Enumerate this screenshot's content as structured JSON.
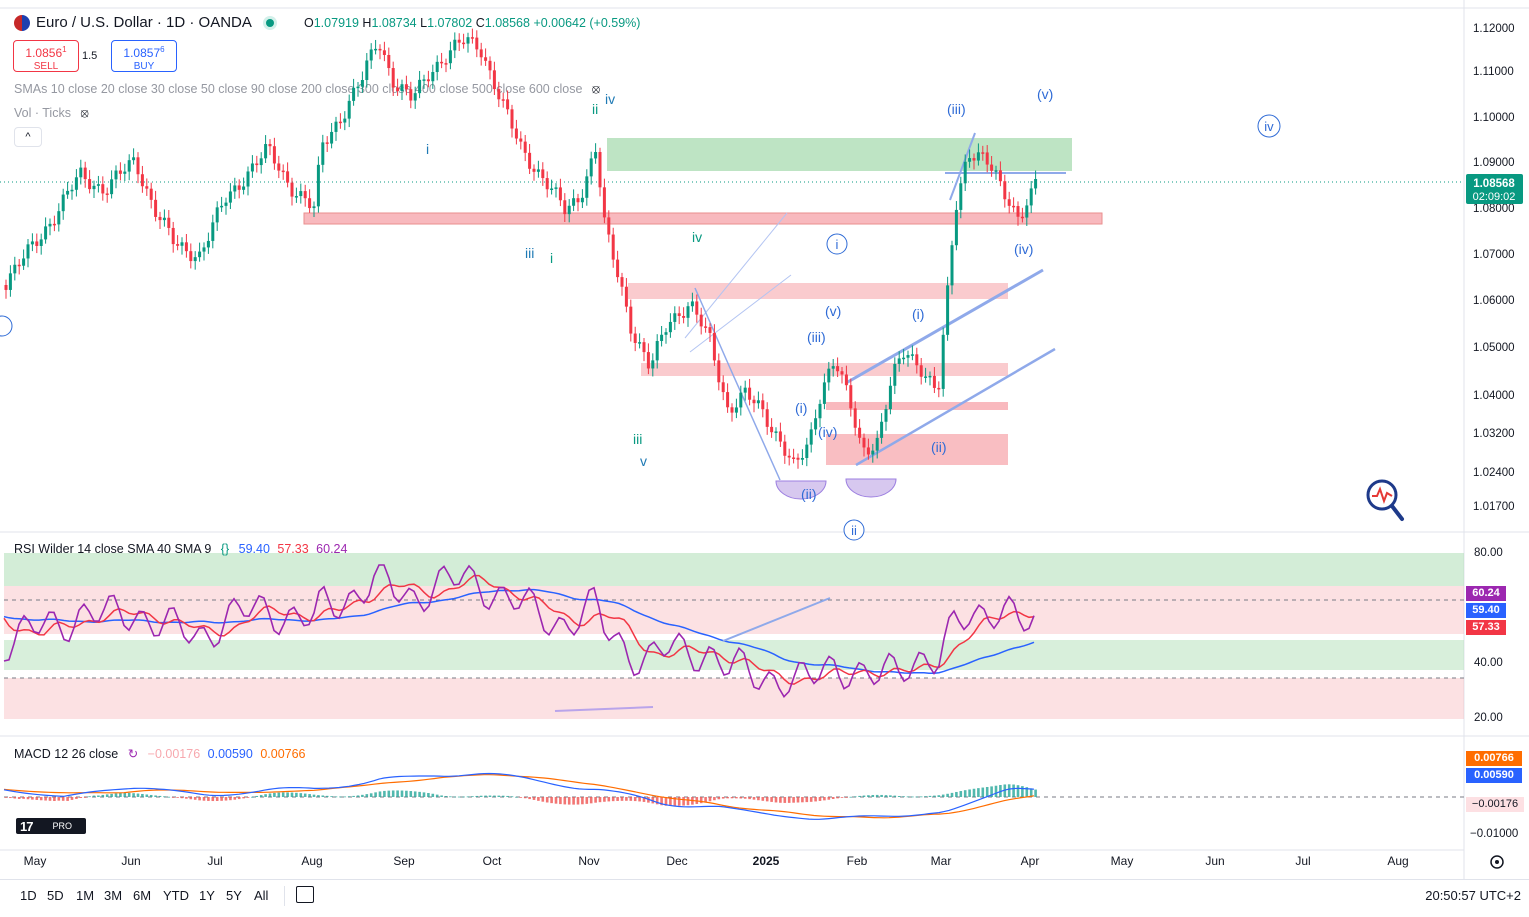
{
  "header": {
    "symbol_title": "Euro / U.S. Dollar · 1D · OANDA",
    "ohlc": {
      "o_key": "O",
      "o": "1.07919",
      "h_key": "H",
      "h": "1.08734",
      "l_key": "L",
      "l": "1.07802",
      "c_key": "C",
      "c": "1.08568",
      "change": "+0.00642 (+0.59%)"
    },
    "sell": {
      "price": "1.0856",
      "sup": "1",
      "label": "SELL"
    },
    "spread": "1.5",
    "buy": {
      "price": "1.0857",
      "sup": "6",
      "label": "BUY"
    },
    "sma_legend": "SMAs 10 close 20 close 30 close 50 close 90 close 200 close 300 close 400 close 500 close 600 close",
    "vol_legend": "Vol · Ticks",
    "collapse_label": "^"
  },
  "price_axis": {
    "ticks": [
      "1.12000",
      "1.11000",
      "1.10000",
      "1.09000",
      "1.08000",
      "1.07000",
      "1.06000",
      "1.05000",
      "1.04000",
      "1.03200",
      "1.02400",
      "1.01700"
    ],
    "last_price": "1.08568",
    "countdown": "02:09:02"
  },
  "wave_labels": {
    "i": "i",
    "ii": "ii",
    "iii": "iii",
    "iv": "iv",
    "v": "v",
    "ci": "i",
    "cii": "ii",
    "civ": "iv",
    "p_i": "(i)",
    "p_ii": "(ii)",
    "p_iii": "(iii)",
    "p_iv": "(iv)",
    "p_v": "(v)"
  },
  "rsi": {
    "legend_name": "RSI Wilder 14 close SMA 40 SMA 9",
    "v1": "59.40",
    "v2": "57.33",
    "v3": "60.24",
    "axis": [
      "80.00",
      "40.00",
      "20.00"
    ],
    "badges": {
      "b1": "60.24",
      "b2": "59.40",
      "b3": "57.33"
    }
  },
  "macd": {
    "legend_name": "MACD 12 26 close",
    "hist": "−0.00176",
    "macd": "0.00590",
    "signal": "0.00766",
    "axis": [
      "−0.01000"
    ],
    "badges": {
      "signal": "0.00766",
      "macd": "0.00590",
      "hist": "−0.00176"
    }
  },
  "time_axis": [
    "May",
    "Jun",
    "Jul",
    "Aug",
    "Sep",
    "Oct",
    "Nov",
    "Dec",
    "2025",
    "Feb",
    "Mar",
    "Apr",
    "May",
    "Jun",
    "Jul",
    "Aug"
  ],
  "logo": "PRO",
  "timeframes": [
    "1D",
    "5D",
    "1M",
    "3M",
    "6M",
    "YTD",
    "1Y",
    "5Y",
    "All"
  ],
  "clock": "20:50:57 UTC+2",
  "colors": {
    "up": "#089981",
    "down": "#f23645",
    "blue": "#2962ff",
    "rsi": "#9c27b0",
    "red_zone": "#f7a8ae",
    "green_zone": "#a8dbb0"
  }
}
